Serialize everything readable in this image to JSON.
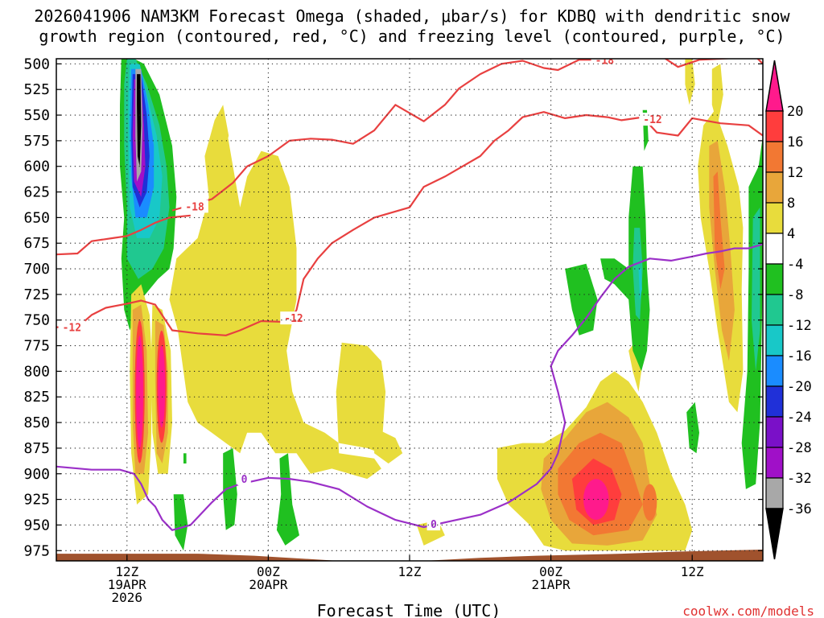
{
  "chart_data": {
    "type": "heatmap",
    "title": "2026041906 NAM3KM Forecast Omega (shaded, μbar/s) for KDBQ with dendritic snow",
    "subtitle": "growth region (contoured, red, °C) and freezing level (contoured, purple, °C)",
    "xlabel": "Forecast Time (UTC)",
    "ylabel": "",
    "credit": "coolwx.com/models",
    "x_range_hours": [
      0,
      50
    ],
    "y_levels": [
      500,
      525,
      550,
      575,
      600,
      625,
      650,
      675,
      700,
      725,
      750,
      775,
      800,
      825,
      850,
      875,
      900,
      925,
      950,
      975
    ],
    "y_range": [
      495,
      985
    ],
    "grid": true,
    "x_ticks": [
      {
        "hour": 5,
        "lines": [
          "12Z",
          "19APR",
          "2026"
        ]
      },
      {
        "hour": 15,
        "lines": [
          "00Z",
          "20APR"
        ]
      },
      {
        "hour": 25,
        "lines": [
          "12Z"
        ]
      },
      {
        "hour": 35,
        "lines": [
          "00Z",
          "21APR"
        ]
      },
      {
        "hour": 45,
        "lines": [
          "12Z"
        ]
      }
    ],
    "colorbar": {
      "labels": [
        "20",
        "16",
        "12",
        "8",
        "4",
        "-4",
        "-8",
        "-12",
        "-16",
        "-20",
        "-24",
        "-28",
        "-32",
        "-36"
      ],
      "colors": [
        "#ff1a8c",
        "#ff3d3d",
        "#f27833",
        "#e8a63a",
        "#e8dc3c",
        "#ffffff",
        "#20c020",
        "#20c890",
        "#18c8c8",
        "#1a8cff",
        "#2030d8",
        "#7a10c8",
        "#a010c8",
        "#a8a8a8",
        "#000000"
      ],
      "unit": "μbar/s"
    },
    "series": [
      {
        "name": "-18",
        "kind": "temperature_isotherm",
        "color": "#e84040",
        "points": [
          [
            8.2,
            643
          ],
          [
            9.5,
            638
          ],
          [
            11,
            632
          ],
          [
            12.5,
            616
          ],
          [
            13.5,
            600
          ],
          [
            15,
            590
          ],
          [
            16.5,
            575
          ],
          [
            18,
            573
          ],
          [
            19.5,
            574
          ],
          [
            21,
            578
          ],
          [
            22.5,
            565
          ],
          [
            24,
            540
          ],
          [
            26,
            556
          ],
          [
            27.5,
            540
          ],
          [
            28.5,
            524
          ],
          [
            30,
            510
          ],
          [
            31.5,
            500
          ],
          [
            33,
            497
          ],
          [
            34.5,
            504
          ],
          [
            35.5,
            506
          ],
          [
            37,
            496
          ],
          [
            38.5,
            496
          ],
          [
            40,
            493
          ],
          [
            41.5,
            490
          ],
          [
            43,
            494
          ],
          [
            44,
            503
          ],
          [
            45.5,
            496
          ],
          [
            47,
            495
          ],
          [
            49.5,
            493
          ],
          [
            50,
            500
          ]
        ]
      },
      {
        "name": "-12",
        "kind": "temperature_isotherm",
        "color": "#e84040",
        "points": [
          [
            0,
            757
          ],
          [
            1.5,
            757
          ],
          [
            2.5,
            745
          ],
          [
            3.5,
            738
          ],
          [
            5,
            734
          ],
          [
            6,
            731
          ],
          [
            7,
            735
          ],
          [
            8.2,
            760
          ],
          [
            10,
            763
          ],
          [
            12,
            765
          ],
          [
            13,
            760
          ],
          [
            14.5,
            751
          ],
          [
            16.5,
            752
          ],
          [
            17,
            740
          ],
          [
            17.5,
            710
          ],
          [
            18.5,
            690
          ],
          [
            19.5,
            675
          ],
          [
            21,
            662
          ],
          [
            22.5,
            650
          ],
          [
            25,
            640
          ],
          [
            26,
            620
          ],
          [
            27.5,
            610
          ],
          [
            29,
            598
          ],
          [
            30,
            590
          ],
          [
            31,
            575
          ],
          [
            32,
            565
          ],
          [
            33,
            552
          ],
          [
            34.5,
            547
          ],
          [
            36,
            553
          ],
          [
            37.5,
            550
          ],
          [
            39,
            552
          ],
          [
            40,
            555
          ],
          [
            41.5,
            552
          ],
          [
            42.5,
            567
          ],
          [
            44,
            570
          ],
          [
            45,
            553
          ],
          [
            47,
            558
          ],
          [
            49,
            560
          ],
          [
            50,
            570
          ]
        ]
      },
      {
        "name": "-12",
        "kind": "temperature_isotherm_left",
        "color": "#e84040",
        "points": [
          [
            0,
            686
          ],
          [
            1.5,
            685
          ],
          [
            2.5,
            673
          ],
          [
            4,
            670
          ],
          [
            5,
            668
          ],
          [
            6,
            662
          ],
          [
            7,
            655
          ],
          [
            8,
            650
          ],
          [
            9.5,
            648
          ]
        ]
      },
      {
        "name": "0",
        "kind": "freezing_level",
        "color": "#9b30c8",
        "points": [
          [
            0,
            893
          ],
          [
            2.5,
            896
          ],
          [
            4.5,
            896
          ],
          [
            5.5,
            900
          ],
          [
            6,
            910
          ],
          [
            6.5,
            925
          ],
          [
            7,
            932
          ],
          [
            7.5,
            945
          ],
          [
            8.2,
            955
          ],
          [
            9.5,
            950
          ],
          [
            11,
            928
          ],
          [
            12,
            915
          ],
          [
            13,
            910
          ],
          [
            14,
            907
          ],
          [
            15,
            904
          ],
          [
            16.5,
            905
          ],
          [
            18,
            908
          ],
          [
            20,
            915
          ],
          [
            22,
            932
          ],
          [
            24,
            945
          ],
          [
            26,
            952
          ],
          [
            28,
            946
          ],
          [
            30,
            940
          ],
          [
            32,
            928
          ],
          [
            34,
            910
          ],
          [
            35,
            895
          ],
          [
            35.5,
            880
          ],
          [
            36,
            850
          ],
          [
            35.5,
            820
          ],
          [
            35,
            795
          ],
          [
            35.5,
            780
          ],
          [
            36.5,
            765
          ],
          [
            37.5,
            748
          ],
          [
            38.5,
            728
          ],
          [
            39.5,
            710
          ],
          [
            40.5,
            698
          ],
          [
            42,
            690
          ],
          [
            43.5,
            692
          ],
          [
            45,
            688
          ],
          [
            46,
            685
          ],
          [
            47,
            683
          ],
          [
            48,
            680
          ],
          [
            49,
            680
          ],
          [
            50,
            676
          ]
        ]
      }
    ]
  },
  "page": {
    "title_line1": "2026041906 NAM3KM Forecast Omega (shaded, μbar/s) for KDBQ with dendritic snow",
    "title_line2": "growth region (contoured, red, °C) and freezing level (contoured, purple, °C)",
    "xlabel": "Forecast Time (UTC)",
    "credit": "coolwx.com/models"
  }
}
